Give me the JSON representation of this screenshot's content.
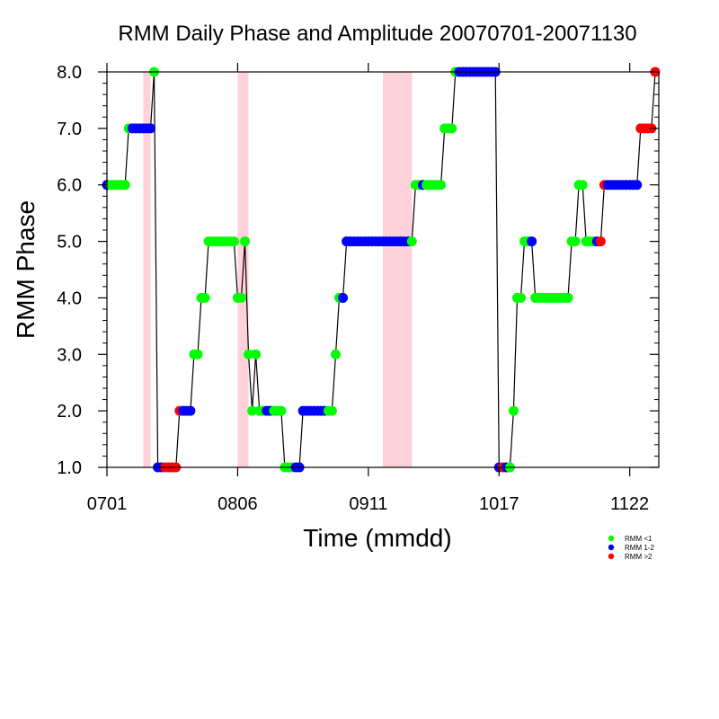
{
  "chart_data": {
    "type": "scatter",
    "title": "RMM Daily Phase and Amplitude 20070701-20071130",
    "xlabel": "Time (mmdd)",
    "ylabel": "RMM Phase",
    "x_start": "2007-07-01",
    "x_end": "2007-11-30",
    "x_ticks": [
      {
        "date": "2007-07-01",
        "label": "0701"
      },
      {
        "date": "2007-08-06",
        "label": "0806"
      },
      {
        "date": "2007-09-11",
        "label": "0911"
      },
      {
        "date": "2007-10-17",
        "label": "1017"
      },
      {
        "date": "2007-11-22",
        "label": "1122"
      }
    ],
    "ylim": [
      1,
      8
    ],
    "y_ticks": [
      "1.0",
      "2.0",
      "3.0",
      "4.0",
      "5.0",
      "6.0",
      "7.0",
      "8.0"
    ],
    "shaded_periods": [
      {
        "start": "2007-07-11",
        "end": "2007-07-13"
      },
      {
        "start": "2007-08-06",
        "end": "2007-08-09"
      },
      {
        "start": "2007-09-15",
        "end": "2007-09-23"
      }
    ],
    "legend": {
      "position": "bottom-right",
      "entries": [
        {
          "label": "RMM <1",
          "color": "#00ff00"
        },
        {
          "label": "RMM 1-2",
          "color": "#0000ff"
        },
        {
          "label": "RMM >2",
          "color": "#ff0000"
        }
      ]
    },
    "colors": {
      "weak": "#00ff00",
      "moderate": "#0000ff",
      "strong": "#ff0000",
      "shade": "#ffd1da",
      "line": "#000000"
    },
    "series": [
      {
        "date": "2007-07-01",
        "phase": 6,
        "amp": "moderate"
      },
      {
        "date": "2007-07-02",
        "phase": 6,
        "amp": "weak"
      },
      {
        "date": "2007-07-03",
        "phase": 6,
        "amp": "weak"
      },
      {
        "date": "2007-07-04",
        "phase": 6,
        "amp": "weak"
      },
      {
        "date": "2007-07-05",
        "phase": 6,
        "amp": "weak"
      },
      {
        "date": "2007-07-06",
        "phase": 6,
        "amp": "weak"
      },
      {
        "date": "2007-07-07",
        "phase": 7,
        "amp": "weak"
      },
      {
        "date": "2007-07-08",
        "phase": 7,
        "amp": "moderate"
      },
      {
        "date": "2007-07-09",
        "phase": 7,
        "amp": "moderate"
      },
      {
        "date": "2007-07-10",
        "phase": 7,
        "amp": "moderate"
      },
      {
        "date": "2007-07-11",
        "phase": 7,
        "amp": "moderate"
      },
      {
        "date": "2007-07-12",
        "phase": 7,
        "amp": "moderate"
      },
      {
        "date": "2007-07-13",
        "phase": 7,
        "amp": "moderate"
      },
      {
        "date": "2007-07-14",
        "phase": 8,
        "amp": "weak"
      },
      {
        "date": "2007-07-15",
        "phase": 1,
        "amp": "moderate"
      },
      {
        "date": "2007-07-16",
        "phase": 1,
        "amp": "moderate"
      },
      {
        "date": "2007-07-17",
        "phase": 1,
        "amp": "strong"
      },
      {
        "date": "2007-07-18",
        "phase": 1,
        "amp": "strong"
      },
      {
        "date": "2007-07-19",
        "phase": 1,
        "amp": "strong"
      },
      {
        "date": "2007-07-20",
        "phase": 1,
        "amp": "strong"
      },
      {
        "date": "2007-07-21",
        "phase": 2,
        "amp": "strong"
      },
      {
        "date": "2007-07-22",
        "phase": 2,
        "amp": "moderate"
      },
      {
        "date": "2007-07-23",
        "phase": 2,
        "amp": "moderate"
      },
      {
        "date": "2007-07-24",
        "phase": 2,
        "amp": "moderate"
      },
      {
        "date": "2007-07-25",
        "phase": 3,
        "amp": "weak"
      },
      {
        "date": "2007-07-26",
        "phase": 3,
        "amp": "weak"
      },
      {
        "date": "2007-07-27",
        "phase": 4,
        "amp": "weak"
      },
      {
        "date": "2007-07-28",
        "phase": 4,
        "amp": "weak"
      },
      {
        "date": "2007-07-29",
        "phase": 5,
        "amp": "weak"
      },
      {
        "date": "2007-07-30",
        "phase": 5,
        "amp": "weak"
      },
      {
        "date": "2007-07-31",
        "phase": 5,
        "amp": "weak"
      },
      {
        "date": "2007-08-01",
        "phase": 5,
        "amp": "weak"
      },
      {
        "date": "2007-08-02",
        "phase": 5,
        "amp": "weak"
      },
      {
        "date": "2007-08-03",
        "phase": 5,
        "amp": "weak"
      },
      {
        "date": "2007-08-04",
        "phase": 5,
        "amp": "weak"
      },
      {
        "date": "2007-08-05",
        "phase": 5,
        "amp": "weak"
      },
      {
        "date": "2007-08-06",
        "phase": 4,
        "amp": "weak"
      },
      {
        "date": "2007-08-07",
        "phase": 4,
        "amp": "weak"
      },
      {
        "date": "2007-08-08",
        "phase": 5,
        "amp": "weak"
      },
      {
        "date": "2007-08-09",
        "phase": 3,
        "amp": "weak"
      },
      {
        "date": "2007-08-10",
        "phase": 2,
        "amp": "weak"
      },
      {
        "date": "2007-08-11",
        "phase": 3,
        "amp": "weak"
      },
      {
        "date": "2007-08-12",
        "phase": 2,
        "amp": "weak"
      },
      {
        "date": "2007-08-13",
        "phase": 2,
        "amp": "weak"
      },
      {
        "date": "2007-08-14",
        "phase": 2,
        "amp": "moderate"
      },
      {
        "date": "2007-08-15",
        "phase": 2,
        "amp": "moderate"
      },
      {
        "date": "2007-08-16",
        "phase": 2,
        "amp": "weak"
      },
      {
        "date": "2007-08-17",
        "phase": 2,
        "amp": "weak"
      },
      {
        "date": "2007-08-18",
        "phase": 2,
        "amp": "weak"
      },
      {
        "date": "2007-08-19",
        "phase": 1,
        "amp": "weak"
      },
      {
        "date": "2007-08-20",
        "phase": 1,
        "amp": "weak"
      },
      {
        "date": "2007-08-21",
        "phase": 1,
        "amp": "weak"
      },
      {
        "date": "2007-08-22",
        "phase": 1,
        "amp": "moderate"
      },
      {
        "date": "2007-08-23",
        "phase": 1,
        "amp": "moderate"
      },
      {
        "date": "2007-08-24",
        "phase": 2,
        "amp": "moderate"
      },
      {
        "date": "2007-08-25",
        "phase": 2,
        "amp": "moderate"
      },
      {
        "date": "2007-08-26",
        "phase": 2,
        "amp": "moderate"
      },
      {
        "date": "2007-08-27",
        "phase": 2,
        "amp": "moderate"
      },
      {
        "date": "2007-08-28",
        "phase": 2,
        "amp": "moderate"
      },
      {
        "date": "2007-08-29",
        "phase": 2,
        "amp": "moderate"
      },
      {
        "date": "2007-08-30",
        "phase": 2,
        "amp": "moderate"
      },
      {
        "date": "2007-08-31",
        "phase": 2,
        "amp": "weak"
      },
      {
        "date": "2007-09-01",
        "phase": 2,
        "amp": "weak"
      },
      {
        "date": "2007-09-02",
        "phase": 3,
        "amp": "weak"
      },
      {
        "date": "2007-09-03",
        "phase": 4,
        "amp": "weak"
      },
      {
        "date": "2007-09-04",
        "phase": 4,
        "amp": "moderate"
      },
      {
        "date": "2007-09-05",
        "phase": 5,
        "amp": "moderate"
      },
      {
        "date": "2007-09-06",
        "phase": 5,
        "amp": "moderate"
      },
      {
        "date": "2007-09-07",
        "phase": 5,
        "amp": "moderate"
      },
      {
        "date": "2007-09-08",
        "phase": 5,
        "amp": "moderate"
      },
      {
        "date": "2007-09-09",
        "phase": 5,
        "amp": "moderate"
      },
      {
        "date": "2007-09-10",
        "phase": 5,
        "amp": "moderate"
      },
      {
        "date": "2007-09-11",
        "phase": 5,
        "amp": "moderate"
      },
      {
        "date": "2007-09-12",
        "phase": 5,
        "amp": "moderate"
      },
      {
        "date": "2007-09-13",
        "phase": 5,
        "amp": "moderate"
      },
      {
        "date": "2007-09-14",
        "phase": 5,
        "amp": "moderate"
      },
      {
        "date": "2007-09-15",
        "phase": 5,
        "amp": "moderate"
      },
      {
        "date": "2007-09-16",
        "phase": 5,
        "amp": "moderate"
      },
      {
        "date": "2007-09-17",
        "phase": 5,
        "amp": "moderate"
      },
      {
        "date": "2007-09-18",
        "phase": 5,
        "amp": "moderate"
      },
      {
        "date": "2007-09-19",
        "phase": 5,
        "amp": "moderate"
      },
      {
        "date": "2007-09-20",
        "phase": 5,
        "amp": "moderate"
      },
      {
        "date": "2007-09-21",
        "phase": 5,
        "amp": "moderate"
      },
      {
        "date": "2007-09-22",
        "phase": 5,
        "amp": "moderate"
      },
      {
        "date": "2007-09-23",
        "phase": 5,
        "amp": "weak"
      },
      {
        "date": "2007-09-24",
        "phase": 6,
        "amp": "weak"
      },
      {
        "date": "2007-09-25",
        "phase": 6,
        "amp": "weak"
      },
      {
        "date": "2007-09-26",
        "phase": 6,
        "amp": "moderate"
      },
      {
        "date": "2007-09-27",
        "phase": 6,
        "amp": "weak"
      },
      {
        "date": "2007-09-28",
        "phase": 6,
        "amp": "weak"
      },
      {
        "date": "2007-09-29",
        "phase": 6,
        "amp": "weak"
      },
      {
        "date": "2007-09-30",
        "phase": 6,
        "amp": "weak"
      },
      {
        "date": "2007-10-01",
        "phase": 6,
        "amp": "weak"
      },
      {
        "date": "2007-10-02",
        "phase": 7,
        "amp": "weak"
      },
      {
        "date": "2007-10-03",
        "phase": 7,
        "amp": "weak"
      },
      {
        "date": "2007-10-04",
        "phase": 7,
        "amp": "weak"
      },
      {
        "date": "2007-10-05",
        "phase": 8,
        "amp": "weak"
      },
      {
        "date": "2007-10-06",
        "phase": 8,
        "amp": "moderate"
      },
      {
        "date": "2007-10-07",
        "phase": 8,
        "amp": "moderate"
      },
      {
        "date": "2007-10-08",
        "phase": 8,
        "amp": "moderate"
      },
      {
        "date": "2007-10-09",
        "phase": 8,
        "amp": "moderate"
      },
      {
        "date": "2007-10-10",
        "phase": 8,
        "amp": "moderate"
      },
      {
        "date": "2007-10-11",
        "phase": 8,
        "amp": "moderate"
      },
      {
        "date": "2007-10-12",
        "phase": 8,
        "amp": "moderate"
      },
      {
        "date": "2007-10-13",
        "phase": 8,
        "amp": "moderate"
      },
      {
        "date": "2007-10-14",
        "phase": 8,
        "amp": "moderate"
      },
      {
        "date": "2007-10-15",
        "phase": 8,
        "amp": "moderate"
      },
      {
        "date": "2007-10-16",
        "phase": 8,
        "amp": "moderate"
      },
      {
        "date": "2007-10-17",
        "phase": 1,
        "amp": "moderate"
      },
      {
        "date": "2007-10-18",
        "phase": 1,
        "amp": "strong"
      },
      {
        "date": "2007-10-19",
        "phase": 1,
        "amp": "moderate"
      },
      {
        "date": "2007-10-20",
        "phase": 1,
        "amp": "weak"
      },
      {
        "date": "2007-10-21",
        "phase": 2,
        "amp": "weak"
      },
      {
        "date": "2007-10-22",
        "phase": 4,
        "amp": "weak"
      },
      {
        "date": "2007-10-23",
        "phase": 4,
        "amp": "weak"
      },
      {
        "date": "2007-10-24",
        "phase": 5,
        "amp": "weak"
      },
      {
        "date": "2007-10-25",
        "phase": 5,
        "amp": "weak"
      },
      {
        "date": "2007-10-26",
        "phase": 5,
        "amp": "moderate"
      },
      {
        "date": "2007-10-27",
        "phase": 4,
        "amp": "weak"
      },
      {
        "date": "2007-10-28",
        "phase": 4,
        "amp": "weak"
      },
      {
        "date": "2007-10-29",
        "phase": 4,
        "amp": "weak"
      },
      {
        "date": "2007-10-30",
        "phase": 4,
        "amp": "weak"
      },
      {
        "date": "2007-10-31",
        "phase": 4,
        "amp": "weak"
      },
      {
        "date": "2007-11-01",
        "phase": 4,
        "amp": "weak"
      },
      {
        "date": "2007-11-02",
        "phase": 4,
        "amp": "weak"
      },
      {
        "date": "2007-11-03",
        "phase": 4,
        "amp": "weak"
      },
      {
        "date": "2007-11-04",
        "phase": 4,
        "amp": "weak"
      },
      {
        "date": "2007-11-05",
        "phase": 4,
        "amp": "weak"
      },
      {
        "date": "2007-11-06",
        "phase": 5,
        "amp": "weak"
      },
      {
        "date": "2007-11-07",
        "phase": 5,
        "amp": "weak"
      },
      {
        "date": "2007-11-08",
        "phase": 6,
        "amp": "weak"
      },
      {
        "date": "2007-11-09",
        "phase": 6,
        "amp": "weak"
      },
      {
        "date": "2007-11-10",
        "phase": 5,
        "amp": "weak"
      },
      {
        "date": "2007-11-11",
        "phase": 5,
        "amp": "weak"
      },
      {
        "date": "2007-11-12",
        "phase": 5,
        "amp": "weak"
      },
      {
        "date": "2007-11-13",
        "phase": 5,
        "amp": "moderate"
      },
      {
        "date": "2007-11-14",
        "phase": 5,
        "amp": "strong"
      },
      {
        "date": "2007-11-15",
        "phase": 6,
        "amp": "strong"
      },
      {
        "date": "2007-11-16",
        "phase": 6,
        "amp": "moderate"
      },
      {
        "date": "2007-11-17",
        "phase": 6,
        "amp": "moderate"
      },
      {
        "date": "2007-11-18",
        "phase": 6,
        "amp": "moderate"
      },
      {
        "date": "2007-11-19",
        "phase": 6,
        "amp": "moderate"
      },
      {
        "date": "2007-11-20",
        "phase": 6,
        "amp": "moderate"
      },
      {
        "date": "2007-11-21",
        "phase": 6,
        "amp": "moderate"
      },
      {
        "date": "2007-11-22",
        "phase": 6,
        "amp": "moderate"
      },
      {
        "date": "2007-11-23",
        "phase": 6,
        "amp": "moderate"
      },
      {
        "date": "2007-11-24",
        "phase": 6,
        "amp": "moderate"
      },
      {
        "date": "2007-11-25",
        "phase": 7,
        "amp": "strong"
      },
      {
        "date": "2007-11-26",
        "phase": 7,
        "amp": "strong"
      },
      {
        "date": "2007-11-27",
        "phase": 7,
        "amp": "strong"
      },
      {
        "date": "2007-11-28",
        "phase": 7,
        "amp": "strong"
      },
      {
        "date": "2007-11-29",
        "phase": 8,
        "amp": "strong"
      }
    ]
  }
}
